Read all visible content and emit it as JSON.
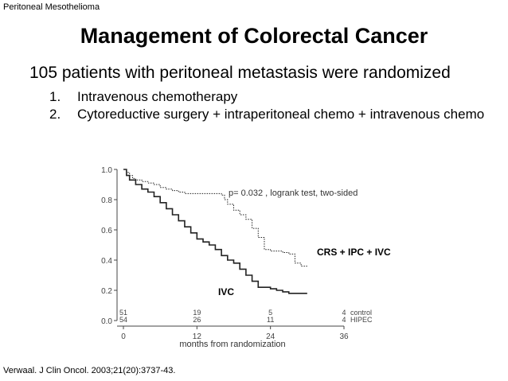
{
  "header": {
    "label": "Peritoneal Mesothelioma"
  },
  "slide": {
    "title": "Management of Colorectal Cancer",
    "lead": "105 patients with peritoneal metastasis were randomized",
    "items": [
      {
        "num": "1.",
        "text": "Intravenous chemotherapy"
      },
      {
        "num": "2.",
        "text": "Cytoreductive surgery + intraperitoneal chemo + intravenous chemo"
      }
    ]
  },
  "citation": "Verwaal. J Clin Oncol. 2003;21(20):3737-43.",
  "chart_data": {
    "type": "line",
    "title": "",
    "xlabel": "months from randomization",
    "ylabel": "",
    "xlim": [
      0,
      36
    ],
    "ylim": [
      0,
      1.0
    ],
    "x_ticks": [
      "0",
      "12",
      "24",
      "36"
    ],
    "y_ticks": [
      "0.0",
      "0.2",
      "0.4",
      "0.6",
      "0.8",
      "1.0"
    ],
    "annotation": "p= 0.032 , logrank test, two-sided",
    "series": [
      {
        "name": "CRS + IPC + IVC",
        "style": "dotted",
        "x": [
          0,
          0.5,
          1,
          1.5,
          2,
          3,
          4,
          5,
          6,
          7,
          8,
          9,
          10,
          12,
          13,
          14,
          15,
          16,
          16.5,
          17,
          18,
          19,
          20,
          21,
          22,
          23,
          24,
          26,
          27,
          28,
          29,
          30
        ],
        "y": [
          1.0,
          0.98,
          0.96,
          0.94,
          0.93,
          0.92,
          0.91,
          0.9,
          0.88,
          0.87,
          0.86,
          0.85,
          0.84,
          0.84,
          0.84,
          0.84,
          0.84,
          0.83,
          0.8,
          0.77,
          0.73,
          0.7,
          0.67,
          0.61,
          0.55,
          0.47,
          0.46,
          0.45,
          0.44,
          0.38,
          0.36,
          0.36
        ]
      },
      {
        "name": "IVC",
        "style": "solid",
        "x": [
          0,
          0.5,
          1,
          2,
          3,
          4,
          5,
          6,
          7,
          8,
          9,
          10,
          11,
          12,
          13,
          14,
          15,
          16,
          17,
          18,
          19,
          20,
          21,
          22,
          24,
          25,
          26,
          27,
          28,
          30
        ],
        "y": [
          1.0,
          0.96,
          0.93,
          0.9,
          0.87,
          0.85,
          0.82,
          0.78,
          0.74,
          0.7,
          0.66,
          0.62,
          0.58,
          0.54,
          0.52,
          0.5,
          0.47,
          0.43,
          0.4,
          0.38,
          0.34,
          0.3,
          0.26,
          0.22,
          0.21,
          0.2,
          0.19,
          0.18,
          0.18,
          0.18
        ]
      }
    ],
    "series_labels": [
      "CRS + IPC + IVC",
      "IVC"
    ],
    "at_risk": {
      "times": [
        0,
        12,
        24,
        36
      ],
      "rows": [
        {
          "label": "control",
          "values": [
            "51",
            "19",
            "5",
            "4"
          ]
        },
        {
          "label": "HIPEC",
          "values": [
            "54",
            "26",
            "11",
            "4"
          ]
        }
      ]
    }
  }
}
